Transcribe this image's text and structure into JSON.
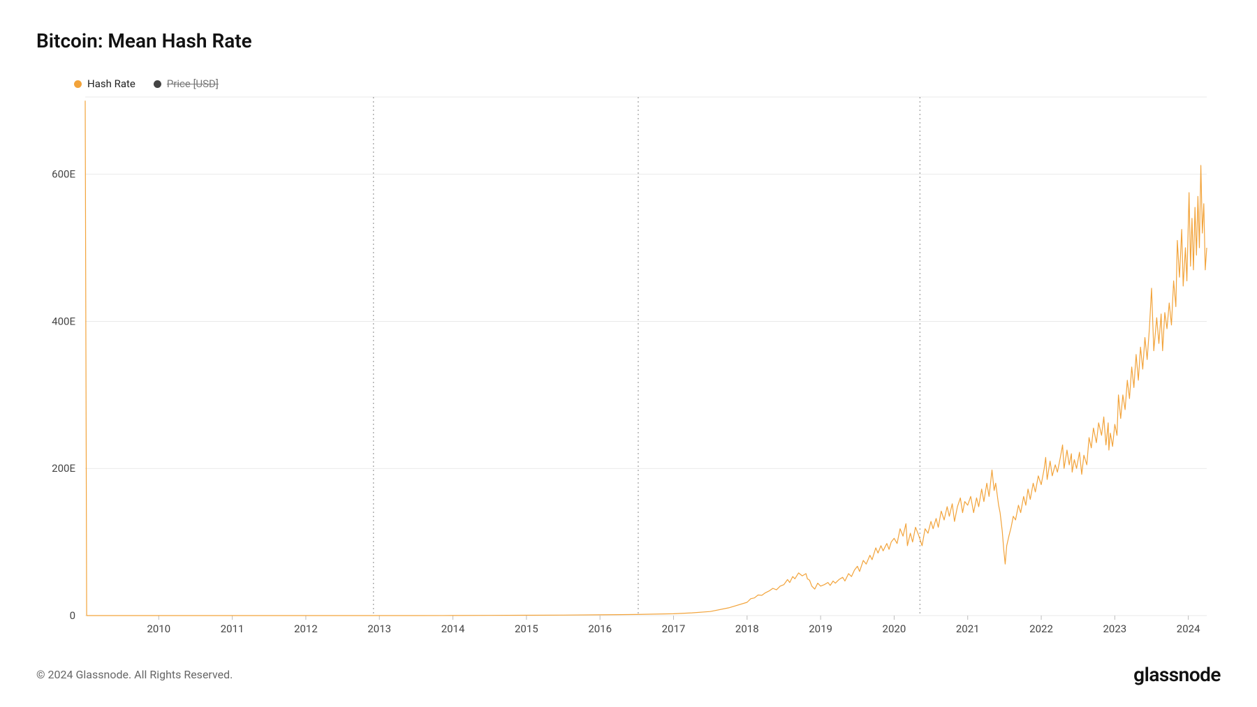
{
  "title": "Bitcoin: Mean Hash Rate",
  "legend": {
    "items": [
      {
        "label": "Hash Rate",
        "color": "#f2a33a",
        "disabled": false
      },
      {
        "label": "Price [USD]",
        "color": "#444444",
        "disabled": true
      }
    ]
  },
  "footer": {
    "copyright": "© 2024 Glassnode. All Rights Reserved.",
    "brand": "glassnode"
  },
  "chart": {
    "type": "line",
    "background_color": "#ffffff",
    "grid_color": "#e9e9e9",
    "series_color": "#f2a33a",
    "series_stroke_width": 1.2,
    "axis_font_size": 15,
    "axis_font_color": "#444444",
    "x": {
      "min": 2009.0,
      "max": 2024.25,
      "ticks": [
        2010,
        2011,
        2012,
        2013,
        2014,
        2015,
        2016,
        2017,
        2018,
        2019,
        2020,
        2021,
        2022,
        2023,
        2024
      ],
      "tick_labels": [
        "2010",
        "2011",
        "2012",
        "2013",
        "2014",
        "2015",
        "2016",
        "2017",
        "2018",
        "2019",
        "2020",
        "2021",
        "2022",
        "2023",
        "2024"
      ]
    },
    "y": {
      "min": 0,
      "max": 705,
      "ticks": [
        0,
        200,
        400,
        600
      ],
      "tick_labels": [
        "0",
        "200E",
        "400E",
        "600E"
      ]
    },
    "vlines": [
      2012.92,
      2016.52,
      2020.35
    ],
    "data": [
      [
        2009.0,
        700
      ],
      [
        2009.02,
        0
      ],
      [
        2009.05,
        0.0
      ],
      [
        2010.0,
        0.0
      ],
      [
        2011.0,
        0.0
      ],
      [
        2012.0,
        0.0
      ],
      [
        2013.0,
        0.01
      ],
      [
        2013.5,
        0.03
      ],
      [
        2014.0,
        0.1
      ],
      [
        2014.5,
        0.3
      ],
      [
        2015.0,
        0.5
      ],
      [
        2015.5,
        0.7
      ],
      [
        2016.0,
        1.0
      ],
      [
        2016.5,
        1.5
      ],
      [
        2017.0,
        2.5
      ],
      [
        2017.25,
        3.7
      ],
      [
        2017.5,
        5.5
      ],
      [
        2017.75,
        10.5
      ],
      [
        2018.0,
        18.0
      ],
      [
        2018.05,
        23.0
      ],
      [
        2018.1,
        24.0
      ],
      [
        2018.15,
        28.0
      ],
      [
        2018.2,
        27.5
      ],
      [
        2018.25,
        31.0
      ],
      [
        2018.3,
        33.5
      ],
      [
        2018.35,
        37.0
      ],
      [
        2018.4,
        35.0
      ],
      [
        2018.45,
        40.0
      ],
      [
        2018.5,
        42.0
      ],
      [
        2018.55,
        49.0
      ],
      [
        2018.58,
        45.0
      ],
      [
        2018.62,
        53.0
      ],
      [
        2018.65,
        50.0
      ],
      [
        2018.7,
        58.0
      ],
      [
        2018.75,
        54.0
      ],
      [
        2018.8,
        57.0
      ],
      [
        2018.82,
        50.0
      ],
      [
        2018.85,
        48.0
      ],
      [
        2018.88,
        40.0
      ],
      [
        2018.92,
        36.0
      ],
      [
        2018.96,
        44.0
      ],
      [
        2019.0,
        40.0
      ],
      [
        2019.05,
        42.0
      ],
      [
        2019.1,
        45.0
      ],
      [
        2019.13,
        41.0
      ],
      [
        2019.17,
        47.0
      ],
      [
        2019.2,
        44.0
      ],
      [
        2019.25,
        49.0
      ],
      [
        2019.3,
        52.0
      ],
      [
        2019.33,
        47.0
      ],
      [
        2019.38,
        57.0
      ],
      [
        2019.42,
        53.0
      ],
      [
        2019.46,
        62.0
      ],
      [
        2019.5,
        67.0
      ],
      [
        2019.53,
        60.0
      ],
      [
        2019.58,
        75.0
      ],
      [
        2019.62,
        70.0
      ],
      [
        2019.67,
        82.0
      ],
      [
        2019.7,
        76.0
      ],
      [
        2019.75,
        92.0
      ],
      [
        2019.78,
        85.0
      ],
      [
        2019.82,
        95.0
      ],
      [
        2019.85,
        88.0
      ],
      [
        2019.9,
        98.0
      ],
      [
        2019.93,
        90.0
      ],
      [
        2019.96,
        100.0
      ],
      [
        2020.0,
        105.0
      ],
      [
        2020.04,
        98.0
      ],
      [
        2020.08,
        118.0
      ],
      [
        2020.12,
        108.0
      ],
      [
        2020.16,
        125.0
      ],
      [
        2020.18,
        95.0
      ],
      [
        2020.22,
        112.0
      ],
      [
        2020.25,
        100.0
      ],
      [
        2020.29,
        120.0
      ],
      [
        2020.33,
        110.0
      ],
      [
        2020.38,
        95.0
      ],
      [
        2020.42,
        118.0
      ],
      [
        2020.46,
        112.0
      ],
      [
        2020.5,
        128.0
      ],
      [
        2020.53,
        118.0
      ],
      [
        2020.57,
        132.0
      ],
      [
        2020.6,
        120.0
      ],
      [
        2020.64,
        142.0
      ],
      [
        2020.68,
        130.0
      ],
      [
        2020.72,
        148.0
      ],
      [
        2020.75,
        135.0
      ],
      [
        2020.79,
        152.0
      ],
      [
        2020.82,
        128.0
      ],
      [
        2020.86,
        148.0
      ],
      [
        2020.9,
        160.0
      ],
      [
        2020.93,
        140.0
      ],
      [
        2020.96,
        155.0
      ],
      [
        2021.0,
        150.0
      ],
      [
        2021.04,
        162.0
      ],
      [
        2021.08,
        140.0
      ],
      [
        2021.12,
        160.0
      ],
      [
        2021.15,
        148.0
      ],
      [
        2021.19,
        172.0
      ],
      [
        2021.22,
        155.0
      ],
      [
        2021.26,
        180.0
      ],
      [
        2021.29,
        162.0
      ],
      [
        2021.33,
        198.0
      ],
      [
        2021.36,
        170.0
      ],
      [
        2021.38,
        180.0
      ],
      [
        2021.42,
        150.0
      ],
      [
        2021.44,
        140.0
      ],
      [
        2021.47,
        115.0
      ],
      [
        2021.49,
        90.0
      ],
      [
        2021.51,
        70.0
      ],
      [
        2021.53,
        95.0
      ],
      [
        2021.56,
        108.0
      ],
      [
        2021.59,
        120.0
      ],
      [
        2021.62,
        135.0
      ],
      [
        2021.65,
        130.0
      ],
      [
        2021.69,
        150.0
      ],
      [
        2021.72,
        140.0
      ],
      [
        2021.76,
        162.0
      ],
      [
        2021.79,
        150.0
      ],
      [
        2021.82,
        172.0
      ],
      [
        2021.85,
        158.0
      ],
      [
        2021.89,
        180.0
      ],
      [
        2021.92,
        168.0
      ],
      [
        2021.96,
        190.0
      ],
      [
        2022.0,
        178.0
      ],
      [
        2022.04,
        200.0
      ],
      [
        2022.06,
        215.0
      ],
      [
        2022.08,
        185.0
      ],
      [
        2022.12,
        210.0
      ],
      [
        2022.15,
        190.0
      ],
      [
        2022.19,
        205.0
      ],
      [
        2022.22,
        195.0
      ],
      [
        2022.26,
        215.0
      ],
      [
        2022.29,
        232.0
      ],
      [
        2022.31,
        200.0
      ],
      [
        2022.35,
        225.0
      ],
      [
        2022.38,
        205.0
      ],
      [
        2022.41,
        220.0
      ],
      [
        2022.42,
        195.0
      ],
      [
        2022.45,
        212.0
      ],
      [
        2022.48,
        200.0
      ],
      [
        2022.52,
        222.0
      ],
      [
        2022.55,
        192.0
      ],
      [
        2022.58,
        218.0
      ],
      [
        2022.62,
        205.0
      ],
      [
        2022.65,
        242.0
      ],
      [
        2022.68,
        228.0
      ],
      [
        2022.71,
        255.0
      ],
      [
        2022.75,
        235.0
      ],
      [
        2022.78,
        262.0
      ],
      [
        2022.82,
        245.0
      ],
      [
        2022.85,
        270.0
      ],
      [
        2022.88,
        232.0
      ],
      [
        2022.91,
        262.0
      ],
      [
        2022.92,
        225.0
      ],
      [
        2022.94,
        248.0
      ],
      [
        2022.97,
        230.0
      ],
      [
        2023.0,
        260.0
      ],
      [
        2023.03,
        245.0
      ],
      [
        2023.05,
        300.0
      ],
      [
        2023.08,
        268.0
      ],
      [
        2023.11,
        300.0
      ],
      [
        2023.14,
        280.0
      ],
      [
        2023.17,
        320.0
      ],
      [
        2023.2,
        295.0
      ],
      [
        2023.23,
        338.0
      ],
      [
        2023.26,
        310.0
      ],
      [
        2023.29,
        355.0
      ],
      [
        2023.32,
        320.0
      ],
      [
        2023.35,
        365.0
      ],
      [
        2023.38,
        335.0
      ],
      [
        2023.41,
        378.0
      ],
      [
        2023.44,
        348.0
      ],
      [
        2023.47,
        390.0
      ],
      [
        2023.5,
        445.0
      ],
      [
        2023.53,
        360.0
      ],
      [
        2023.57,
        405.0
      ],
      [
        2023.6,
        370.0
      ],
      [
        2023.63,
        410.0
      ],
      [
        2023.65,
        360.0
      ],
      [
        2023.68,
        412.0
      ],
      [
        2023.71,
        390.0
      ],
      [
        2023.74,
        425.0
      ],
      [
        2023.77,
        395.0
      ],
      [
        2023.8,
        455.0
      ],
      [
        2023.83,
        420.0
      ],
      [
        2023.85,
        510.0
      ],
      [
        2023.88,
        460.0
      ],
      [
        2023.91,
        525.0
      ],
      [
        2023.93,
        448.0
      ],
      [
        2023.96,
        500.0
      ],
      [
        2023.98,
        455.0
      ],
      [
        2024.01,
        575.0
      ],
      [
        2024.03,
        475.0
      ],
      [
        2024.05,
        540.0
      ],
      [
        2024.07,
        470.0
      ],
      [
        2024.09,
        555.0
      ],
      [
        2024.11,
        490.0
      ],
      [
        2024.13,
        570.0
      ],
      [
        2024.15,
        500.0
      ],
      [
        2024.17,
        612.0
      ],
      [
        2024.19,
        520.0
      ],
      [
        2024.21,
        560.0
      ],
      [
        2024.23,
        470.0
      ],
      [
        2024.25,
        500.0
      ]
    ]
  }
}
